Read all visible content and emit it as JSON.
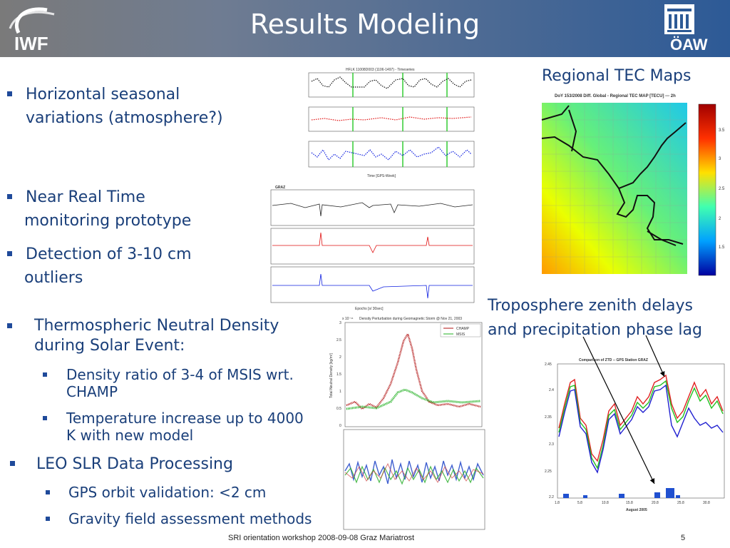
{
  "header": {
    "title": "Results Modeling",
    "logo_left": "IWF",
    "logo_right": "ÖAW"
  },
  "bullets": [
    {
      "line1": "Horizontal seasonal",
      "line2": "variations (atmosphere?)"
    },
    {
      "line1": "Near Real Time",
      "line2": "monitoring prototype"
    },
    {
      "line1": "Detection of 3-10 cm",
      "line2": "outliers"
    },
    {
      "line1": "Thermospheric Neutral Density",
      "line2": "during Solar Event:"
    },
    {
      "line1": "LEO SLR Data Processing"
    }
  ],
  "sub_bullets": [
    {
      "line1": "Density ratio of 3-4 of MSIS wrt.",
      "line2": "CHAMP"
    },
    {
      "line1": "Temperature increase up to 4000",
      "line2": "K with new model"
    },
    {
      "line1": "GPS orbit validation: <2 cm"
    },
    {
      "line1": "Gravity field assessment methods"
    }
  ],
  "labels": {
    "tec_maps": "Regional TEC Maps",
    "tropo_line1": "Troposphere zenith delays",
    "tropo_line2": "and precipitation phase lag"
  },
  "figures": {
    "timeseries_title": "HFLK 11008D003 (1106-1497) - Timeseries",
    "timeseries_xlabel": "Time [GPS-Week]",
    "graz_title": "GRAZ",
    "graz_xlabel": "Epochs [s/ 30sec]",
    "tec_title": "DoY 153/2008 Diff. Global - Regional TEC MAP [TECU] --- 2h",
    "tec_colorbar_ticks": [
      "3.5",
      "3",
      "2.5",
      "2",
      "1.5"
    ],
    "density_title": "Density Perturbation during Geomagnetic Storm @ Nov 21, 2003",
    "density_ylabel": "Total Neutral Density [kg/m³]",
    "density_exponent": "x 10⁻¹¹",
    "density_legend": [
      "CHAMP",
      "MSIS"
    ],
    "density_yticks": [
      "3",
      "2.5",
      "2",
      "1.5",
      "1",
      "0.5",
      "0"
    ],
    "ztd_title": "Comparison of ZTD -- GPS Station GRAZ",
    "ztd_xlabel": "August 2005",
    "ztd_yticks": [
      "2.45",
      "2.4",
      "2.35",
      "2.3",
      "2.25",
      "2.2"
    ],
    "ztd_xticks": [
      "1.8",
      "5.8",
      "10.8",
      "15.8",
      "20.8",
      "25.8",
      "30.8"
    ]
  },
  "colors": {
    "text": "#1a3f7a",
    "header_dark": "#2d5a96",
    "marker": "#1f4a9a"
  },
  "footer": {
    "text": "SRI orientation workshop 2008-09-08 Graz Mariatrost",
    "page": "5"
  }
}
